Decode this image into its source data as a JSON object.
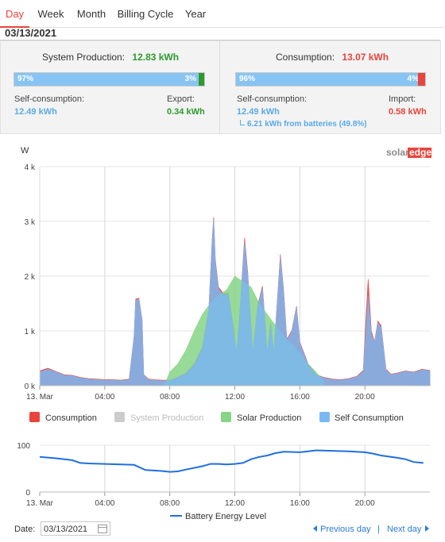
{
  "tabs": [
    "Day",
    "Week",
    "Month",
    "Billing Cycle",
    "Year"
  ],
  "current_date": "03/13/2021",
  "production": {
    "label": "System Production:",
    "value": "12.83 kWh",
    "pct_self": "97%",
    "pct_export": "3%",
    "self_label": "Self-consumption:",
    "self_value": "12.49 kWh",
    "export_label": "Export:",
    "export_value": "0.34 kWh"
  },
  "consumption": {
    "label": "Consumption:",
    "value": "13.07 kWh",
    "pct_self": "96%",
    "pct_import": "4%",
    "self_label": "Self-consumption:",
    "self_value": "12.49 kWh",
    "battery_note": "6.21 kWh from batteries (49.8%)",
    "import_label": "Import:",
    "import_value": "0.58 kWh"
  },
  "brand": {
    "part1": "solar",
    "part2": "edge"
  },
  "colors": {
    "consumption": "#e8453c",
    "system_production": "#cccccc",
    "solar_production": "#86d486",
    "self_consumption": "#7ab8f5",
    "battery": "#1f6fe0"
  },
  "chart_data": [
    {
      "type": "area",
      "ylabel": "W",
      "yticks": [
        "0 k",
        "1 k",
        "2 k",
        "3 k",
        "4 k"
      ],
      "ylim": [
        0,
        4000
      ],
      "xlim": [
        0,
        24
      ],
      "xticks": [
        {
          "x": 0,
          "label": "13. Mar"
        },
        {
          "x": 4,
          "label": "04:00"
        },
        {
          "x": 8,
          "label": "08:00"
        },
        {
          "x": 12,
          "label": "12:00"
        },
        {
          "x": 16,
          "label": "16:00"
        },
        {
          "x": 20,
          "label": "20:00"
        }
      ],
      "grid": true,
      "legend": [
        "Consumption",
        "System Production",
        "Solar Production",
        "Self Consumption"
      ],
      "series": [
        {
          "name": "Consumption",
          "points": [
            [
              0,
              270
            ],
            [
              0.5,
              320
            ],
            [
              1,
              260
            ],
            [
              1.5,
              200
            ],
            [
              2,
              190
            ],
            [
              2.5,
              150
            ],
            [
              3,
              130
            ],
            [
              3.5,
              120
            ],
            [
              4,
              110
            ],
            [
              4.5,
              110
            ],
            [
              5,
              100
            ],
            [
              5.5,
              120
            ],
            [
              5.8,
              900
            ],
            [
              5.9,
              1580
            ],
            [
              6.1,
              1600
            ],
            [
              6.3,
              1200
            ],
            [
              6.4,
              200
            ],
            [
              6.7,
              120
            ],
            [
              7,
              110
            ],
            [
              7.5,
              100
            ],
            [
              8,
              100
            ],
            [
              8.5,
              160
            ],
            [
              9,
              230
            ],
            [
              9.5,
              400
            ],
            [
              10,
              700
            ],
            [
              10.4,
              1400
            ],
            [
              10.6,
              2650
            ],
            [
              10.7,
              3080
            ],
            [
              10.8,
              2300
            ],
            [
              11,
              1800
            ],
            [
              11.3,
              1680
            ],
            [
              11.6,
              1700
            ],
            [
              11.9,
              1100
            ],
            [
              12.1,
              600
            ],
            [
              12.3,
              1300
            ],
            [
              12.6,
              2700
            ],
            [
              12.8,
              2050
            ],
            [
              13.1,
              600
            ],
            [
              13.4,
              1450
            ],
            [
              13.7,
              1820
            ],
            [
              14,
              600
            ],
            [
              14.2,
              1150
            ],
            [
              14.4,
              600
            ],
            [
              14.6,
              1500
            ],
            [
              14.8,
              2400
            ],
            [
              15,
              1750
            ],
            [
              15.2,
              850
            ],
            [
              15.5,
              1000
            ],
            [
              15.8,
              1450
            ],
            [
              16,
              800
            ],
            [
              16.5,
              400
            ],
            [
              17,
              200
            ],
            [
              17.5,
              150
            ],
            [
              18,
              120
            ],
            [
              18.5,
              110
            ],
            [
              19,
              130
            ],
            [
              19.5,
              170
            ],
            [
              19.9,
              280
            ],
            [
              20.1,
              1400
            ],
            [
              20.2,
              1950
            ],
            [
              20.4,
              1000
            ],
            [
              20.6,
              800
            ],
            [
              20.8,
              1180
            ],
            [
              21,
              1100
            ],
            [
              21.3,
              300
            ],
            [
              21.6,
              210
            ],
            [
              22,
              230
            ],
            [
              22.5,
              270
            ],
            [
              23,
              250
            ],
            [
              23.5,
              300
            ],
            [
              24,
              280
            ]
          ]
        },
        {
          "name": "Solar Production",
          "points": [
            [
              7.5,
              0
            ],
            [
              7.8,
              100
            ],
            [
              8,
              250
            ],
            [
              8.5,
              400
            ],
            [
              9,
              650
            ],
            [
              9.5,
              1000
            ],
            [
              10,
              1300
            ],
            [
              10.5,
              1500
            ],
            [
              11,
              1650
            ],
            [
              11.5,
              1750
            ],
            [
              12,
              2000
            ],
            [
              12.5,
              1900
            ],
            [
              13,
              1800
            ],
            [
              13.5,
              1500
            ],
            [
              14,
              1300
            ],
            [
              14.5,
              1100
            ],
            [
              15,
              900
            ],
            [
              15.5,
              750
            ],
            [
              16,
              600
            ],
            [
              16.5,
              400
            ],
            [
              17,
              250
            ],
            [
              17.4,
              100
            ],
            [
              17.6,
              0
            ]
          ]
        },
        {
          "name": "Self Consumption",
          "points": [
            [
              0,
              250
            ],
            [
              0.5,
              300
            ],
            [
              1,
              250
            ],
            [
              1.5,
              190
            ],
            [
              2,
              180
            ],
            [
              2.5,
              140
            ],
            [
              3,
              120
            ],
            [
              3.5,
              110
            ],
            [
              4,
              100
            ],
            [
              4.5,
              100
            ],
            [
              5,
              90
            ],
            [
              5.5,
              110
            ],
            [
              5.8,
              880
            ],
            [
              5.9,
              1560
            ],
            [
              6.1,
              1580
            ],
            [
              6.3,
              1180
            ],
            [
              6.4,
              190
            ],
            [
              6.7,
              110
            ],
            [
              7,
              100
            ],
            [
              7.5,
              90
            ],
            [
              8,
              90
            ],
            [
              8.5,
              150
            ],
            [
              9,
              220
            ],
            [
              9.5,
              380
            ],
            [
              10,
              680
            ],
            [
              10.4,
              1380
            ],
            [
              10.6,
              2600
            ],
            [
              10.7,
              3030
            ],
            [
              10.8,
              2260
            ],
            [
              11,
              1770
            ],
            [
              11.3,
              1650
            ],
            [
              11.6,
              1670
            ],
            [
              11.9,
              1080
            ],
            [
              12.1,
              580
            ],
            [
              12.3,
              1270
            ],
            [
              12.6,
              2620
            ],
            [
              12.8,
              2000
            ],
            [
              13.1,
              580
            ],
            [
              13.4,
              1420
            ],
            [
              13.7,
              1780
            ],
            [
              14,
              580
            ],
            [
              14.2,
              1120
            ],
            [
              14.4,
              580
            ],
            [
              14.6,
              1470
            ],
            [
              14.8,
              2350
            ],
            [
              15,
              1700
            ],
            [
              15.2,
              830
            ],
            [
              15.5,
              980
            ],
            [
              15.8,
              1420
            ],
            [
              16,
              780
            ],
            [
              16.5,
              380
            ],
            [
              17,
              190
            ],
            [
              17.5,
              140
            ],
            [
              18,
              110
            ],
            [
              18.5,
              100
            ],
            [
              19,
              120
            ],
            [
              19.5,
              160
            ],
            [
              19.9,
              260
            ],
            [
              20.1,
              1150
            ],
            [
              20.2,
              1650
            ],
            [
              20.4,
              950
            ],
            [
              20.6,
              780
            ],
            [
              20.8,
              1150
            ],
            [
              21,
              1070
            ],
            [
              21.3,
              280
            ],
            [
              21.6,
              200
            ],
            [
              22,
              220
            ],
            [
              22.5,
              260
            ],
            [
              23,
              240
            ],
            [
              23.5,
              290
            ],
            [
              24,
              270
            ]
          ]
        }
      ]
    },
    {
      "type": "line",
      "yticks": [
        "0",
        "100"
      ],
      "ylim": [
        0,
        100
      ],
      "xlim": [
        0,
        24
      ],
      "xticks": [
        {
          "x": 0,
          "label": "13. Mar"
        },
        {
          "x": 4,
          "label": "04:00"
        },
        {
          "x": 8,
          "label": "08:00"
        },
        {
          "x": 12,
          "label": "12:00"
        },
        {
          "x": 16,
          "label": "16:00"
        },
        {
          "x": 20,
          "label": "20:00"
        }
      ],
      "grid": true,
      "legend": [
        "Battery Energy Level"
      ],
      "series": [
        {
          "name": "Battery Energy Level",
          "points": [
            [
              0,
              75
            ],
            [
              1,
              72
            ],
            [
              2,
              68
            ],
            [
              2.5,
              62
            ],
            [
              3,
              61
            ],
            [
              4,
              60
            ],
            [
              5,
              59
            ],
            [
              5.8,
              58
            ],
            [
              6.5,
              47
            ],
            [
              7.5,
              45
            ],
            [
              8,
              43
            ],
            [
              8.5,
              44
            ],
            [
              9,
              48
            ],
            [
              10,
              55
            ],
            [
              10.5,
              60
            ],
            [
              11,
              60
            ],
            [
              11.5,
              59
            ],
            [
              12,
              60
            ],
            [
              12.5,
              62
            ],
            [
              13,
              70
            ],
            [
              13.5,
              75
            ],
            [
              14,
              78
            ],
            [
              14.5,
              83
            ],
            [
              15,
              86
            ],
            [
              16,
              85
            ],
            [
              16.5,
              87
            ],
            [
              17,
              89
            ],
            [
              18,
              88
            ],
            [
              19,
              87
            ],
            [
              20,
              85
            ],
            [
              20.5,
              82
            ],
            [
              21,
              78
            ],
            [
              22,
              73
            ],
            [
              22.5,
              70
            ],
            [
              23,
              64
            ],
            [
              23.6,
              62
            ]
          ]
        }
      ]
    }
  ],
  "footer": {
    "date_label": "Date:",
    "date_value": "03/13/2021",
    "prev": "Previous day",
    "sep": "|",
    "next": "Next day"
  }
}
